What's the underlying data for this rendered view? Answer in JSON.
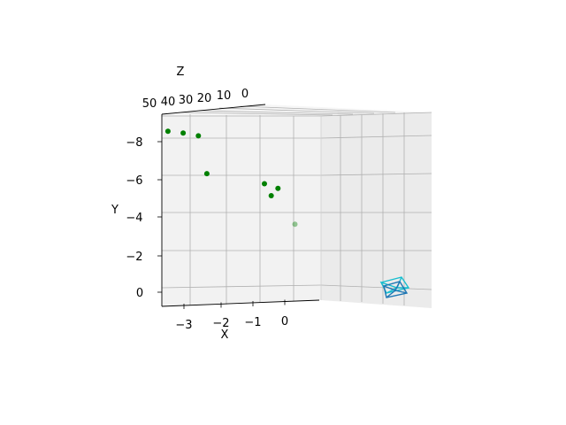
{
  "chart_data": {
    "type": "scatter",
    "projection": "3d",
    "title": "",
    "xlabel": "X",
    "ylabel": "Y",
    "zlabel": "Z",
    "grid": true,
    "x_ticks": [
      "−3",
      "−2",
      "−1",
      "0"
    ],
    "y_ticks": [
      "0",
      "−2",
      "−4",
      "−6",
      "−8"
    ],
    "z_ticks": [
      "50",
      "40",
      "30",
      "20",
      "10",
      "0"
    ],
    "point_color": "#008000",
    "points": [
      {
        "x": -3.45,
        "y": -8.45,
        "alpha": 1.0
      },
      {
        "x": -3.0,
        "y": -8.35,
        "alpha": 1.0
      },
      {
        "x": -2.55,
        "y": -8.2,
        "alpha": 1.0
      },
      {
        "x": -2.3,
        "y": -6.15,
        "alpha": 1.0
      },
      {
        "x": -0.6,
        "y": -5.6,
        "alpha": 1.0
      },
      {
        "x": -0.2,
        "y": -5.35,
        "alpha": 1.0
      },
      {
        "x": -0.4,
        "y": -4.95,
        "alpha": 1.0
      },
      {
        "x": 0.3,
        "y": -3.4,
        "alpha": 0.4
      }
    ],
    "camera_wireframes": [
      {
        "color": "#17becf"
      },
      {
        "color": "#1f77b4"
      }
    ]
  }
}
